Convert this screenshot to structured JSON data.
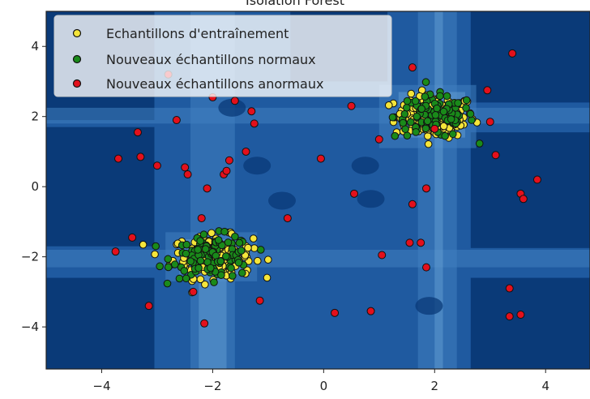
{
  "chart_data": {
    "type": "scatter",
    "title": "Isolation Forest",
    "xlim": [
      -5,
      4.8
    ],
    "ylim": [
      -5.2,
      5
    ],
    "xticks": [
      -4,
      -2,
      0,
      2,
      4
    ],
    "yticks": [
      -4,
      -2,
      0,
      2,
      4
    ],
    "xtick_labels": [
      "−4",
      "−2",
      "0",
      "2",
      "4"
    ],
    "ytick_labels": [
      "−4",
      "−2",
      "0",
      "2",
      "4"
    ],
    "legend_position": "top-left",
    "background": "decision-function contour (blue)",
    "colors": {
      "Echantillons d'entraînement": "#f5e53a",
      "Nouveaux échantillons normaux": "#1a8a1a",
      "Nouveaux échantillons anormaux": "#e3101c",
      "outline": "#111111",
      "contour_dark": "#0a3a78",
      "contour_mid": "#1f5aa0",
      "contour_light": "#3f7fc0",
      "contour_pale": "#6aa3d6"
    },
    "series": [
      {
        "name": "Echantillons d'entraînement",
        "cluster_centers": [
          [
            2.0,
            2.0
          ],
          [
            -2.0,
            -2.0
          ]
        ],
        "spread": 0.3
      },
      {
        "name": "Nouveaux échantillons normaux",
        "cluster_centers": [
          [
            2.0,
            2.0
          ],
          [
            -2.0,
            -2.0
          ]
        ],
        "spread": 0.3
      },
      {
        "name": "Nouveaux échantillons anormaux",
        "x": [
          -3.7,
          -3.35,
          -3.3,
          -3.0,
          -2.8,
          -2.65,
          -2.5,
          -2.45,
          -2.1,
          -2.0,
          -1.8,
          -1.75,
          -1.7,
          -1.6,
          -1.4,
          -1.3,
          -1.25,
          3.4,
          0.5,
          0.55,
          1.0,
          1.6,
          2.0,
          1.85,
          1.6,
          2.95,
          3.0,
          3.1,
          3.55,
          3.6,
          3.85,
          -0.05,
          -0.65,
          -2.2,
          -3.45,
          -3.75,
          -1.15,
          -3.15,
          -2.35,
          -2.15,
          0.2,
          1.05,
          0.85,
          1.55,
          1.75,
          1.85,
          3.35,
          3.35,
          3.55
        ],
        "y": [
          0.8,
          1.55,
          0.85,
          0.6,
          3.2,
          1.9,
          0.55,
          0.35,
          -0.05,
          2.55,
          0.35,
          0.45,
          0.75,
          2.45,
          1.0,
          2.15,
          1.8,
          3.8,
          2.3,
          -0.2,
          1.35,
          3.4,
          1.65,
          -0.05,
          -0.5,
          2.75,
          1.85,
          0.9,
          -0.2,
          -0.35,
          0.2,
          0.8,
          -0.9,
          -0.9,
          -1.45,
          -1.85,
          -3.25,
          -3.4,
          -3.0,
          -3.9,
          -3.6,
          -1.95,
          -3.55,
          -1.6,
          -1.6,
          -2.3,
          -2.9,
          -3.7,
          -3.65
        ]
      }
    ]
  }
}
